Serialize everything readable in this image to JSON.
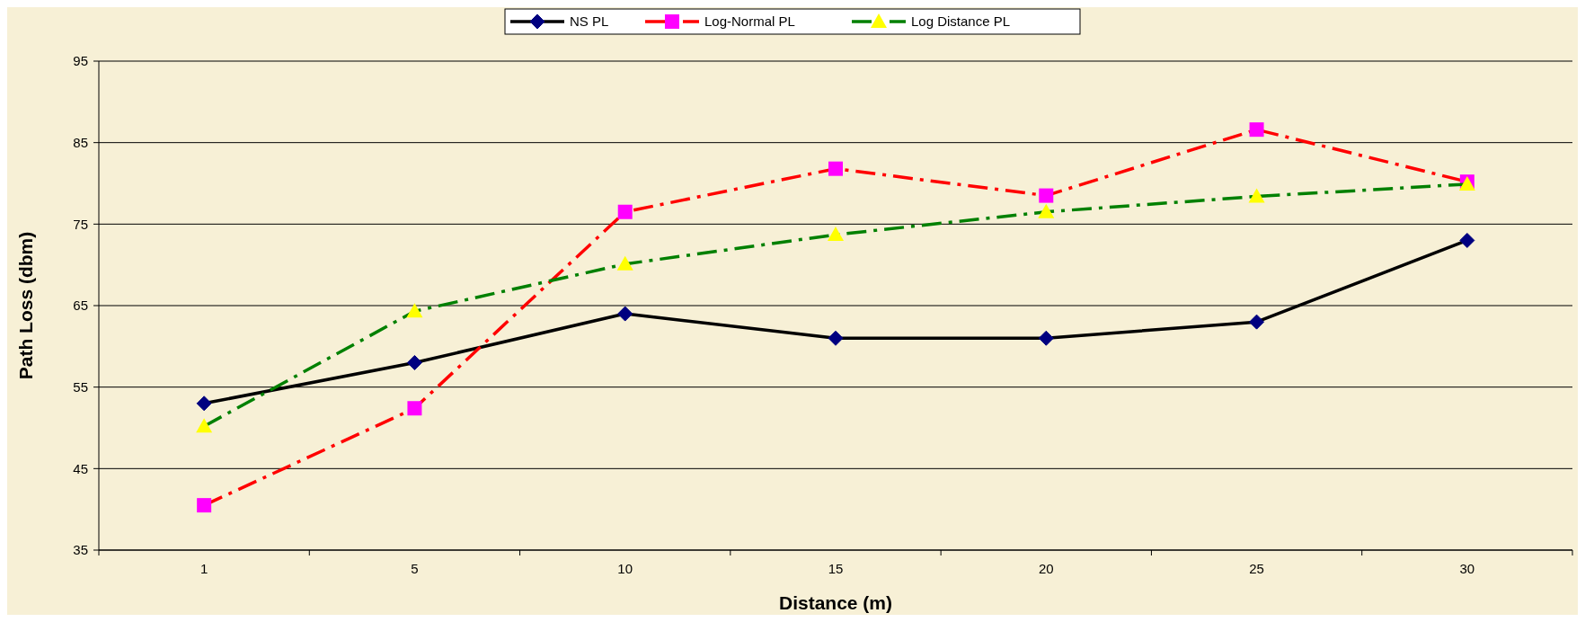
{
  "chart_data": {
    "type": "line",
    "xlabel": "Distance (m)",
    "ylabel": "Path Loss (dbm)",
    "categories": [
      "1",
      "5",
      "10",
      "15",
      "20",
      "25",
      "30"
    ],
    "ylim": [
      35,
      95
    ],
    "yticks": [
      35,
      45,
      55,
      65,
      75,
      85,
      95
    ],
    "grid": "y",
    "legend": "top",
    "series": [
      {
        "name": "NS PL",
        "color": "#000000",
        "colors": [
          "#000080",
          "#000080",
          "#000080",
          "#000080",
          "#000080",
          "#000080",
          "#000080"
        ],
        "marker": "diamond",
        "line_style": "solid",
        "values": [
          53,
          58,
          64,
          61,
          61,
          63,
          73
        ]
      },
      {
        "name": "Log-Normal PL",
        "color": "#ff0000",
        "colors": [
          "#ff00ff",
          "#ff00ff",
          "#ff00ff",
          "#ff00ff",
          "#ff00ff",
          "#ff00ff",
          "#ff00ff"
        ],
        "marker": "square",
        "line_style": "dashdot",
        "values": [
          40.5,
          52.4,
          76.5,
          81.8,
          78.5,
          86.6,
          80.2
        ]
      },
      {
        "name": "Log Distance PL",
        "color": "#008000",
        "colors": [
          "#ffff00",
          "#ffff00",
          "#ffff00",
          "#ffff00",
          "#ffff00",
          "#ffff00",
          "#ffff00"
        ],
        "marker": "triangle",
        "line_style": "dashdot",
        "values": [
          50.2,
          64.3,
          70.1,
          73.7,
          76.5,
          78.4,
          79.9
        ]
      }
    ]
  }
}
